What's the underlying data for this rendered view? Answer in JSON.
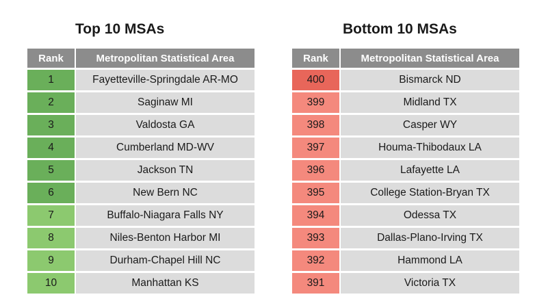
{
  "top": {
    "title": "Top 10 MSAs",
    "headers": {
      "rank": "Rank",
      "area": "Metropolitan Statistical Area"
    },
    "rows": [
      {
        "rank": "1",
        "area": "Fayetteville-Springdale AR-MO",
        "color": "#6aaf5a"
      },
      {
        "rank": "2",
        "area": "Saginaw MI",
        "color": "#6aaf5a"
      },
      {
        "rank": "3",
        "area": "Valdosta GA",
        "color": "#6aaf5a"
      },
      {
        "rank": "4",
        "area": "Cumberland MD-WV",
        "color": "#6aaf5a"
      },
      {
        "rank": "5",
        "area": "Jackson TN",
        "color": "#6aaf5a"
      },
      {
        "rank": "6",
        "area": "New Bern NC",
        "color": "#6aaf5a"
      },
      {
        "rank": "7",
        "area": "Buffalo-Niagara Falls NY",
        "color": "#8cc96f"
      },
      {
        "rank": "8",
        "area": "Niles-Benton Harbor MI",
        "color": "#8cc96f"
      },
      {
        "rank": "9",
        "area": "Durham-Chapel Hill NC",
        "color": "#8cc96f"
      },
      {
        "rank": "10",
        "area": "Manhattan KS",
        "color": "#8cc96f"
      }
    ]
  },
  "bottom": {
    "title": "Bottom 10 MSAs",
    "headers": {
      "rank": "Rank",
      "area": "Metropolitan Statistical Area"
    },
    "rows": [
      {
        "rank": "400",
        "area": "Bismarck ND",
        "color": "#e8665a"
      },
      {
        "rank": "399",
        "area": "Midland TX",
        "color": "#f4897d"
      },
      {
        "rank": "398",
        "area": "Casper WY",
        "color": "#f4897d"
      },
      {
        "rank": "397",
        "area": "Houma-Thibodaux LA",
        "color": "#f4897d"
      },
      {
        "rank": "396",
        "area": "Lafayette LA",
        "color": "#f4897d"
      },
      {
        "rank": "395",
        "area": "College Station-Bryan TX",
        "color": "#f4897d"
      },
      {
        "rank": "394",
        "area": "Odessa TX",
        "color": "#f4897d"
      },
      {
        "rank": "393",
        "area": "Dallas-Plano-Irving TX",
        "color": "#f4897d"
      },
      {
        "rank": "392",
        "area": "Hammond LA",
        "color": "#f4897d"
      },
      {
        "rank": "391",
        "area": "Victoria TX",
        "color": "#f4897d"
      }
    ]
  }
}
